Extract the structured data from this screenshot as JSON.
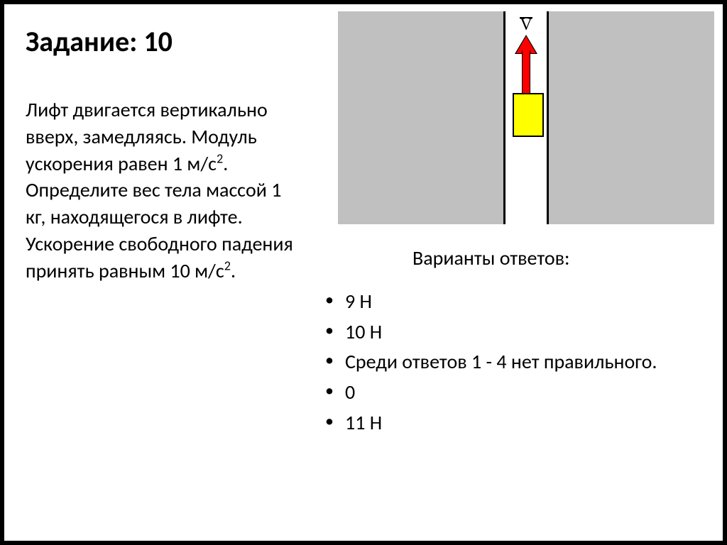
{
  "title": "Задание: 10",
  "problem_html": "Лифт двигается вертикально вверх, замедляясь. Модуль ускорения равен 1 м/с<sup>2</sup>. Определите вес тела массой 1 кг, находящегося в лифте. Ускорение свободного падения принять равным 10 м/с<sup>2</sup>.",
  "answers_title": "Варианты ответов:",
  "answers": [
    "9 Н",
    " 10 Н",
    " Среди ответов 1 - 4 нет правильного.",
    " 0",
    " 11 Н"
  ],
  "diagram": {
    "velocity_label": "V",
    "colors": {
      "grey": "#c0c0c0",
      "elevator_fill": "#ffff00",
      "arrow_fill": "#ff0000",
      "border": "#000000",
      "background": "#ffffff"
    }
  }
}
